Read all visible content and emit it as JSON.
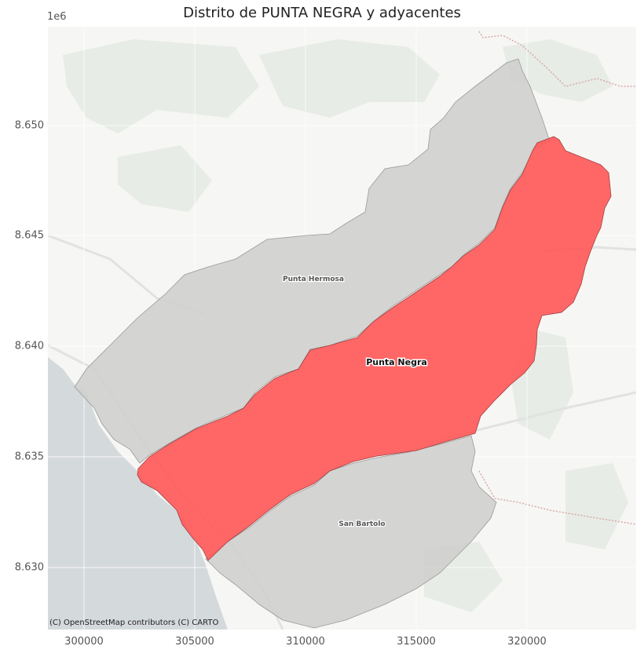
{
  "title": "Distrito de PUNTA NEGRA y adyacentes",
  "y_axis": {
    "multiplier_label": "1e6",
    "ticks": [
      "8.650",
      "8.645",
      "8.640",
      "8.635",
      "8.630"
    ]
  },
  "x_axis": {
    "ticks": [
      "300000",
      "305000",
      "310000",
      "315000",
      "320000"
    ]
  },
  "districts": {
    "highlight": "Punta Negra",
    "adjacent": [
      "Punta Hermosa",
      "San Bartolo"
    ]
  },
  "attribution": "(C) OpenStreetMap contributors (C) CARTO",
  "colors": {
    "highlight_fill": "#ff5a5a",
    "adjacent_fill": "#d3d3d3",
    "sea": "#d4d9dc",
    "land": "#f5f5f3",
    "vegetation": "#e6ebe4"
  }
}
